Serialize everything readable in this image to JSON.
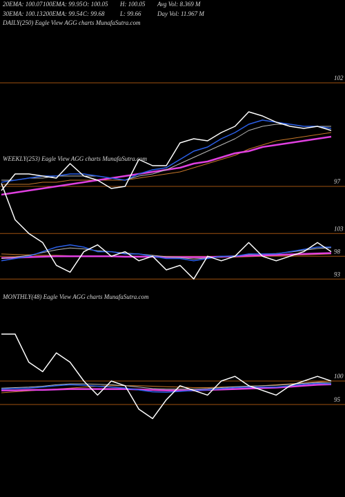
{
  "header": {
    "row1": [
      "20EMA: 100.07",
      "100EMA: 99.95",
      "O: 100.05",
      "H: 100.05",
      "Avg Vol: 8.369 M"
    ],
    "row2": [
      "30EMA: 100.13",
      "200EMA: 99.54",
      "C: 99.68",
      "L: 99.66",
      "Day Vol: 11.967 M"
    ]
  },
  "chart_data": [
    {
      "type": "line",
      "title": "DAILY(250) Eagle  View  AGG charts MunafaSutra.com",
      "ylim": [
        96.3,
        104.5
      ],
      "yticks": [
        102,
        97
      ],
      "grid": true,
      "grid_color": "#a0520f",
      "series": [
        {
          "color": "#c8782a",
          "width": 1,
          "values": [
            97.1,
            97.1,
            97.1,
            97.2,
            97.2,
            97.3,
            97.3,
            97.3,
            97.3,
            97.3,
            97.4,
            97.5,
            97.6,
            97.7,
            97.9,
            98.1,
            98.3,
            98.5,
            98.8,
            99.0,
            99.2,
            99.3,
            99.4,
            99.5,
            99.6
          ]
        },
        {
          "color": "#e040e0",
          "width": 2.5,
          "values": [
            96.6,
            96.7,
            96.8,
            96.9,
            97.0,
            97.1,
            97.2,
            97.3,
            97.4,
            97.5,
            97.6,
            97.7,
            97.8,
            97.9,
            98.1,
            98.2,
            98.4,
            98.6,
            98.7,
            98.9,
            99.0,
            99.1,
            99.2,
            99.3,
            99.4
          ]
        },
        {
          "color": "#bbbbbb",
          "width": 1,
          "values": [
            97.3,
            97.3,
            97.4,
            97.4,
            97.5,
            97.5,
            97.5,
            97.5,
            97.4,
            97.3,
            97.5,
            97.6,
            97.8,
            98.1,
            98.4,
            98.7,
            99.0,
            99.3,
            99.7,
            99.9,
            100.0,
            100.0,
            99.9,
            99.9,
            99.9
          ]
        },
        {
          "color": "#2a5fe8",
          "width": 1.5,
          "values": [
            97.2,
            97.3,
            97.4,
            97.5,
            97.5,
            97.6,
            97.6,
            97.5,
            97.4,
            97.3,
            97.6,
            97.8,
            97.9,
            98.3,
            98.7,
            98.9,
            99.3,
            99.6,
            100.0,
            100.2,
            100.1,
            100.0,
            99.9,
            99.9,
            99.8
          ]
        },
        {
          "color": "#ffffff",
          "width": 1.5,
          "values": [
            96.8,
            97.6,
            97.6,
            97.5,
            97.4,
            98.1,
            97.5,
            97.3,
            96.9,
            97.0,
            98.3,
            98.0,
            98.0,
            99.1,
            99.3,
            99.2,
            99.6,
            99.9,
            100.6,
            100.4,
            100.1,
            99.9,
            99.8,
            99.9,
            99.7
          ]
        }
      ]
    },
    {
      "type": "line",
      "title": "WEEKLY(253) Eagle  View  AGG charts MunafaSutra.com",
      "ylim": [
        90.5,
        119.5
      ],
      "yticks": [
        103,
        98,
        93
      ],
      "grid": true,
      "grid_color": "#a0520f",
      "series": [
        {
          "color": "#c8782a",
          "width": 1,
          "values": [
            98.5,
            98.4,
            98.3,
            98.2,
            98.2,
            98.1,
            98.0,
            98.0,
            97.9,
            97.9,
            97.8,
            97.8,
            97.8,
            97.7,
            97.7,
            97.7,
            97.8,
            97.8,
            97.9,
            98.0,
            98.1,
            98.2,
            98.3,
            98.4,
            98.5
          ]
        },
        {
          "color": "#e040e0",
          "width": 2.5,
          "values": [
            97.6,
            97.7,
            97.8,
            97.9,
            98.0,
            98.0,
            98.0,
            98.0,
            98.0,
            97.9,
            97.9,
            97.9,
            97.8,
            97.8,
            97.8,
            97.8,
            97.9,
            98.0,
            98.1,
            98.2,
            98.3,
            98.4,
            98.5,
            98.6,
            98.7
          ]
        },
        {
          "color": "#bbbbbb",
          "width": 1,
          "values": [
            97.5,
            97.8,
            98.2,
            98.8,
            99.4,
            99.8,
            99.6,
            99.2,
            99.0,
            98.7,
            98.5,
            98.2,
            97.9,
            97.7,
            97.4,
            97.6,
            97.9,
            98.1,
            98.4,
            98.5,
            98.6,
            98.9,
            99.3,
            99.7,
            99.9
          ]
        },
        {
          "color": "#2a5fe8",
          "width": 1.5,
          "values": [
            97.0,
            97.5,
            98.0,
            99.0,
            100.0,
            100.5,
            100.0,
            99.0,
            99.0,
            98.5,
            98.5,
            98.0,
            97.5,
            97.5,
            97.0,
            97.5,
            98.0,
            98.0,
            98.5,
            98.5,
            98.5,
            99.0,
            99.5,
            100.0,
            100.0
          ]
        },
        {
          "color": "#ffffff",
          "width": 1.5,
          "values": [
            114,
            106,
            103,
            101,
            96,
            94.5,
            99,
            100.5,
            98,
            99,
            97,
            98,
            95,
            96,
            93,
            98,
            97,
            98,
            101,
            98,
            97,
            98,
            99,
            101,
            99
          ]
        }
      ]
    },
    {
      "type": "line",
      "title": "MONTHLY(48) Eagle  View  AGG charts MunafaSutra.com",
      "ylim": [
        90,
        116.5
      ],
      "yticks": [
        100,
        95
      ],
      "grid": true,
      "grid_color": "#a0520f",
      "series": [
        {
          "color": "#c8782a",
          "width": 1,
          "values": [
            97.5,
            97.7,
            97.9,
            98.1,
            98.3,
            98.5,
            98.7,
            98.9,
            99.0,
            99.0,
            99.0,
            98.9,
            98.8,
            98.7,
            98.6,
            98.6,
            98.7,
            98.8,
            98.9,
            99.0,
            99.2,
            99.4,
            99.6,
            99.8,
            100.0
          ]
        },
        {
          "color": "#e040e0",
          "width": 2.5,
          "values": [
            98.0,
            98.0,
            98.1,
            98.1,
            98.2,
            98.3,
            98.3,
            98.3,
            98.3,
            98.3,
            98.2,
            98.1,
            98.0,
            98.0,
            98.0,
            98.1,
            98.2,
            98.3,
            98.4,
            98.5,
            98.6,
            98.8,
            99.0,
            99.2,
            99.3
          ]
        },
        {
          "color": "#bbbbbb",
          "width": 1,
          "values": [
            98.5,
            98.6,
            98.7,
            98.9,
            99.2,
            99.4,
            99.4,
            99.3,
            99.2,
            99.0,
            98.7,
            98.4,
            98.3,
            98.3,
            98.3,
            98.4,
            98.6,
            98.8,
            98.9,
            99.0,
            99.1,
            99.3,
            99.5,
            99.7,
            99.6
          ]
        },
        {
          "color": "#2a5fe8",
          "width": 1.5,
          "values": [
            98.3,
            98.4,
            98.5,
            98.7,
            99.0,
            99.2,
            99.1,
            98.9,
            98.7,
            98.5,
            98.1,
            97.7,
            97.6,
            97.8,
            98.0,
            98.1,
            98.4,
            98.6,
            98.7,
            98.7,
            98.7,
            99.0,
            99.3,
            99.5,
            99.4
          ]
        },
        {
          "color": "#ffffff",
          "width": 1.5,
          "values": [
            110,
            110,
            104,
            102,
            106,
            104,
            100,
            97,
            100,
            99,
            94,
            92,
            96,
            99,
            98,
            97,
            100,
            101,
            99,
            98,
            97,
            99,
            100,
            101,
            100
          ]
        }
      ]
    }
  ]
}
